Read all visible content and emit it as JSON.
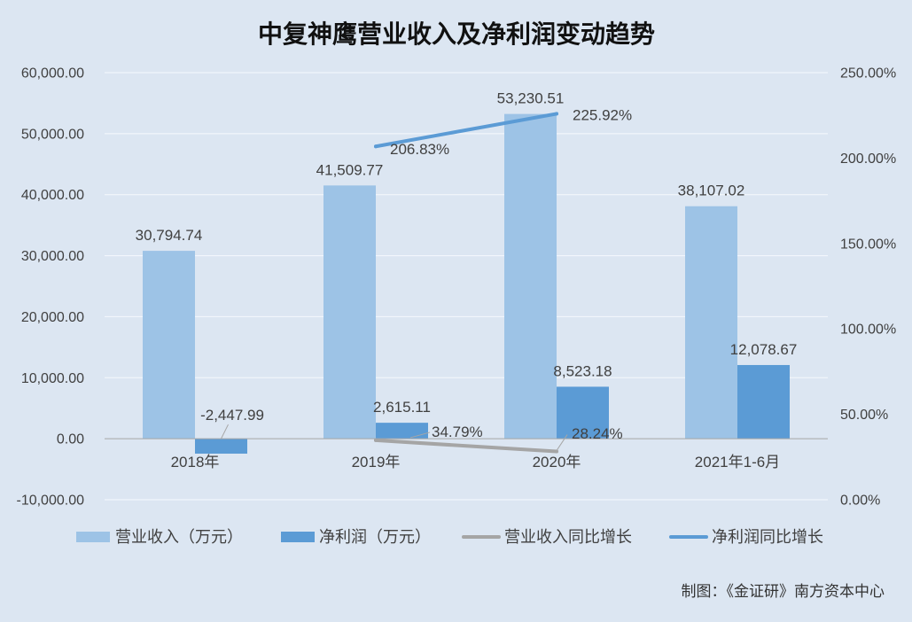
{
  "colors": {
    "background": "#DCE6F2"
  },
  "chart_data": {
    "type": "bar",
    "title": "中复神鹰营业收入及净利润变动趋势",
    "categories": [
      "2018年",
      "2019年",
      "2020年",
      "2021年1-6月"
    ],
    "ylim": [
      -10000,
      60000
    ],
    "yticks": [
      60000,
      50000,
      40000,
      30000,
      20000,
      10000,
      0,
      -10000
    ],
    "ytick_labels": [
      "60,000.00",
      "50,000.00",
      "40,000.00",
      "30,000.00",
      "20,000.00",
      "10,000.00",
      "0.00",
      "-10,000.00"
    ],
    "y2lim": [
      0,
      250
    ],
    "y2ticks": [
      250,
      200,
      150,
      100,
      50,
      0
    ],
    "y2tick_labels": [
      "250.00%",
      "200.00%",
      "150.00%",
      "100.00%",
      "50.00%",
      "0.00%"
    ],
    "grid": true,
    "legend": "bottom",
    "series": [
      {
        "name": "营业收入（万元）",
        "type": "bar",
        "axis": "left",
        "color": "#9DC3E6",
        "values": [
          30794.74,
          41509.77,
          53230.51,
          38107.02
        ],
        "labels": [
          "30,794.74",
          "41,509.77",
          "53,230.51",
          "38,107.02"
        ]
      },
      {
        "name": "净利润（万元）",
        "type": "bar",
        "axis": "left",
        "color": "#5B9BD5",
        "values": [
          -2447.99,
          2615.11,
          8523.18,
          12078.67
        ],
        "labels": [
          "-2,447.99",
          "2,615.11",
          "8,523.18",
          "12,078.67"
        ]
      },
      {
        "name": "营业收入同比增长",
        "type": "line",
        "axis": "right",
        "color": "#A5A5A5",
        "values": [
          null,
          34.79,
          28.24,
          null
        ],
        "labels": [
          "",
          "34.79%",
          "28.24%",
          ""
        ]
      },
      {
        "name": "净利润同比增长",
        "type": "line",
        "axis": "right",
        "color": "#5B9BD5",
        "values": [
          null,
          206.83,
          225.92,
          null
        ],
        "labels": [
          "",
          "206.83%",
          "225.92%",
          ""
        ]
      }
    ]
  },
  "footer": {
    "credit": "制图：《金证研》南方资本中心"
  }
}
